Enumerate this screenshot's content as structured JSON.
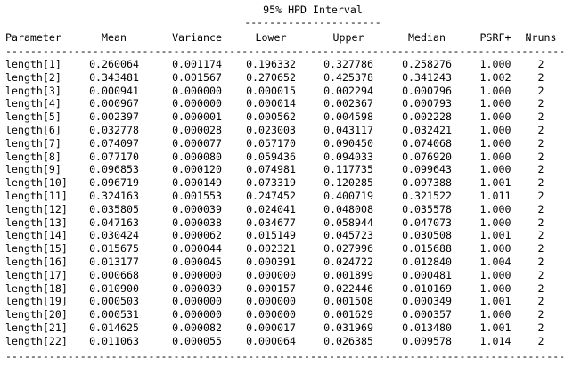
{
  "hpd": {
    "title": "95% HPD Interval",
    "rule": "----------------------"
  },
  "columns": [
    "Parameter",
    "Mean",
    "Variance",
    "Lower",
    "Upper",
    "Median",
    "PSRF+",
    "Nruns"
  ],
  "separator": "------------------------------------------------------------------------------------------",
  "rows": [
    [
      "length[1]",
      "0.260064",
      "0.001174",
      "0.196332",
      "0.327786",
      "0.258276",
      "1.000",
      "2"
    ],
    [
      "length[2]",
      "0.343481",
      "0.001567",
      "0.270652",
      "0.425378",
      "0.341243",
      "1.002",
      "2"
    ],
    [
      "length[3]",
      "0.000941",
      "0.000000",
      "0.000015",
      "0.002294",
      "0.000796",
      "1.000",
      "2"
    ],
    [
      "length[4]",
      "0.000967",
      "0.000000",
      "0.000014",
      "0.002367",
      "0.000793",
      "1.000",
      "2"
    ],
    [
      "length[5]",
      "0.002397",
      "0.000001",
      "0.000562",
      "0.004598",
      "0.002228",
      "1.000",
      "2"
    ],
    [
      "length[6]",
      "0.032778",
      "0.000028",
      "0.023003",
      "0.043117",
      "0.032421",
      "1.000",
      "2"
    ],
    [
      "length[7]",
      "0.074097",
      "0.000077",
      "0.057170",
      "0.090450",
      "0.074068",
      "1.000",
      "2"
    ],
    [
      "length[8]",
      "0.077170",
      "0.000080",
      "0.059436",
      "0.094033",
      "0.076920",
      "1.000",
      "2"
    ],
    [
      "length[9]",
      "0.096853",
      "0.000120",
      "0.074981",
      "0.117735",
      "0.099643",
      "1.000",
      "2"
    ],
    [
      "length[10]",
      "0.096719",
      "0.000149",
      "0.073319",
      "0.120285",
      "0.097388",
      "1.001",
      "2"
    ],
    [
      "length[11]",
      "0.324163",
      "0.001553",
      "0.247452",
      "0.400719",
      "0.321522",
      "1.011",
      "2"
    ],
    [
      "length[12]",
      "0.035805",
      "0.000039",
      "0.024041",
      "0.048008",
      "0.035578",
      "1.000",
      "2"
    ],
    [
      "length[13]",
      "0.047163",
      "0.000038",
      "0.034677",
      "0.058944",
      "0.047073",
      "1.000",
      "2"
    ],
    [
      "length[14]",
      "0.030424",
      "0.000062",
      "0.015149",
      "0.045723",
      "0.030508",
      "1.001",
      "2"
    ],
    [
      "length[15]",
      "0.015675",
      "0.000044",
      "0.002321",
      "0.027996",
      "0.015688",
      "1.000",
      "2"
    ],
    [
      "length[16]",
      "0.013177",
      "0.000045",
      "0.000391",
      "0.024722",
      "0.012840",
      "1.004",
      "2"
    ],
    [
      "length[17]",
      "0.000668",
      "0.000000",
      "0.000000",
      "0.001899",
      "0.000481",
      "1.000",
      "2"
    ],
    [
      "length[18]",
      "0.010900",
      "0.000039",
      "0.000157",
      "0.022446",
      "0.010169",
      "1.000",
      "2"
    ],
    [
      "length[19]",
      "0.000503",
      "0.000000",
      "0.000000",
      "0.001508",
      "0.000349",
      "1.001",
      "2"
    ],
    [
      "length[20]",
      "0.000531",
      "0.000000",
      "0.000000",
      "0.001629",
      "0.000357",
      "1.000",
      "2"
    ],
    [
      "length[21]",
      "0.014625",
      "0.000082",
      "0.000017",
      "0.031969",
      "0.013480",
      "1.001",
      "2"
    ],
    [
      "length[22]",
      "0.011063",
      "0.000055",
      "0.000064",
      "0.026385",
      "0.009578",
      "1.014",
      "2"
    ]
  ]
}
